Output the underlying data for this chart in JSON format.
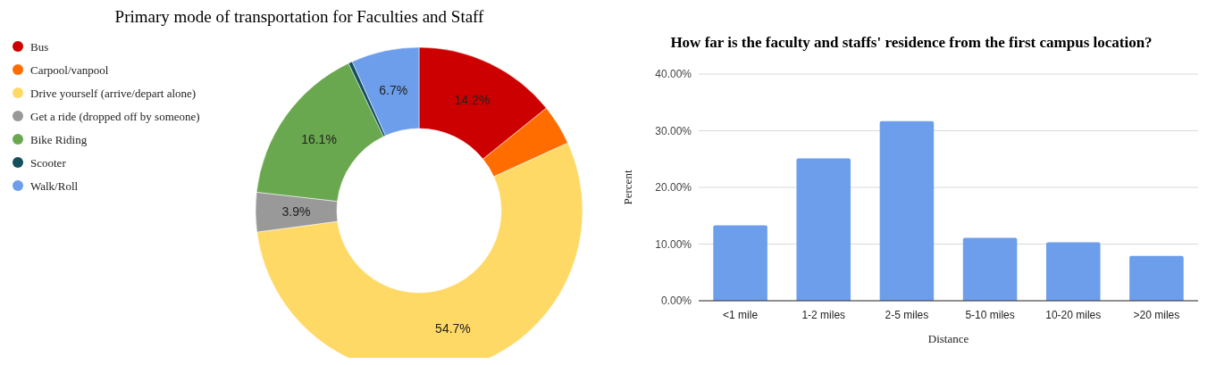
{
  "chart_data": [
    {
      "type": "donut",
      "title": "Primary mode of transportation for Faculties and Staff",
      "categories": [
        "Bus",
        "Carpool/vanpool",
        "Drive yourself (arrive/depart alone)",
        "Get a ride (dropped off by someone)",
        "Bike Riding",
        "Scooter",
        "Walk/Roll"
      ],
      "values": [
        14.2,
        4.0,
        54.7,
        3.9,
        16.1,
        0.4,
        6.7
      ],
      "colors": [
        "#cc0000",
        "#ff6d01",
        "#ffd966",
        "#999999",
        "#6aa84f",
        "#134f5c",
        "#6d9eeb"
      ],
      "value_labels": [
        "14.2%",
        null,
        "54.7%",
        "3.9%",
        "16.1%",
        null,
        "6.7%"
      ],
      "legend": "left"
    },
    {
      "type": "bar",
      "title": "How far is the faculty and staffs' residence from the first campus location?",
      "xlabel": "Distance",
      "ylabel": "Percent",
      "categories": [
        "<1 mile",
        "1-2 miles",
        "2-5 miles",
        "5-10 miles",
        "10-20 miles",
        ">20 miles"
      ],
      "values": [
        13.3,
        25.1,
        31.7,
        11.1,
        10.3,
        7.9
      ],
      "color": "#6d9eeb",
      "ylim": [
        0,
        40
      ],
      "yticks": [
        {
          "value": 0,
          "label": "0.00%"
        },
        {
          "value": 10,
          "label": "10.00%"
        },
        {
          "value": 20,
          "label": "20.00%"
        },
        {
          "value": 30,
          "label": "30.00%"
        },
        {
          "value": 40,
          "label": "40.00%"
        }
      ],
      "grid": "y"
    }
  ]
}
